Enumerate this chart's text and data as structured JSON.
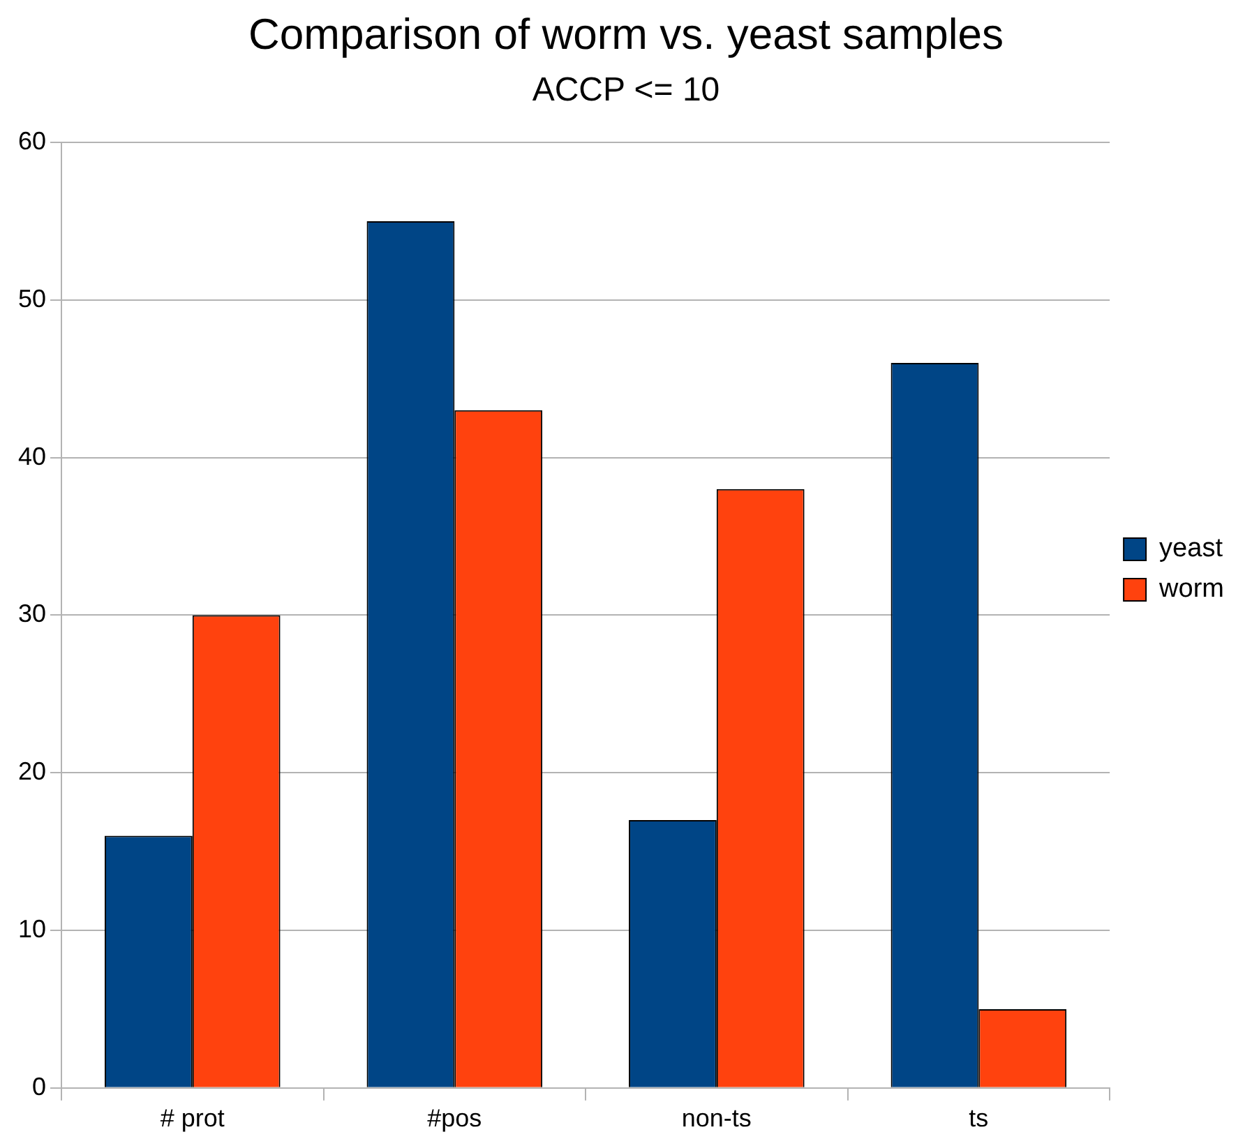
{
  "chart_data": {
    "type": "bar",
    "title": "Comparison of worm vs. yeast samples",
    "subtitle": "ACCP <= 10",
    "categories": [
      "# prot",
      "#pos",
      "non-ts",
      "ts"
    ],
    "series": [
      {
        "name": "yeast",
        "color": "#004586",
        "values": [
          16,
          55,
          17,
          46
        ]
      },
      {
        "name": "worm",
        "color": "#ff420e",
        "values": [
          30,
          43,
          38,
          5
        ]
      }
    ],
    "ylim": [
      0,
      60
    ],
    "yticks": [
      0,
      10,
      20,
      30,
      40,
      50,
      60
    ],
    "grid": "y",
    "legend": "right"
  }
}
